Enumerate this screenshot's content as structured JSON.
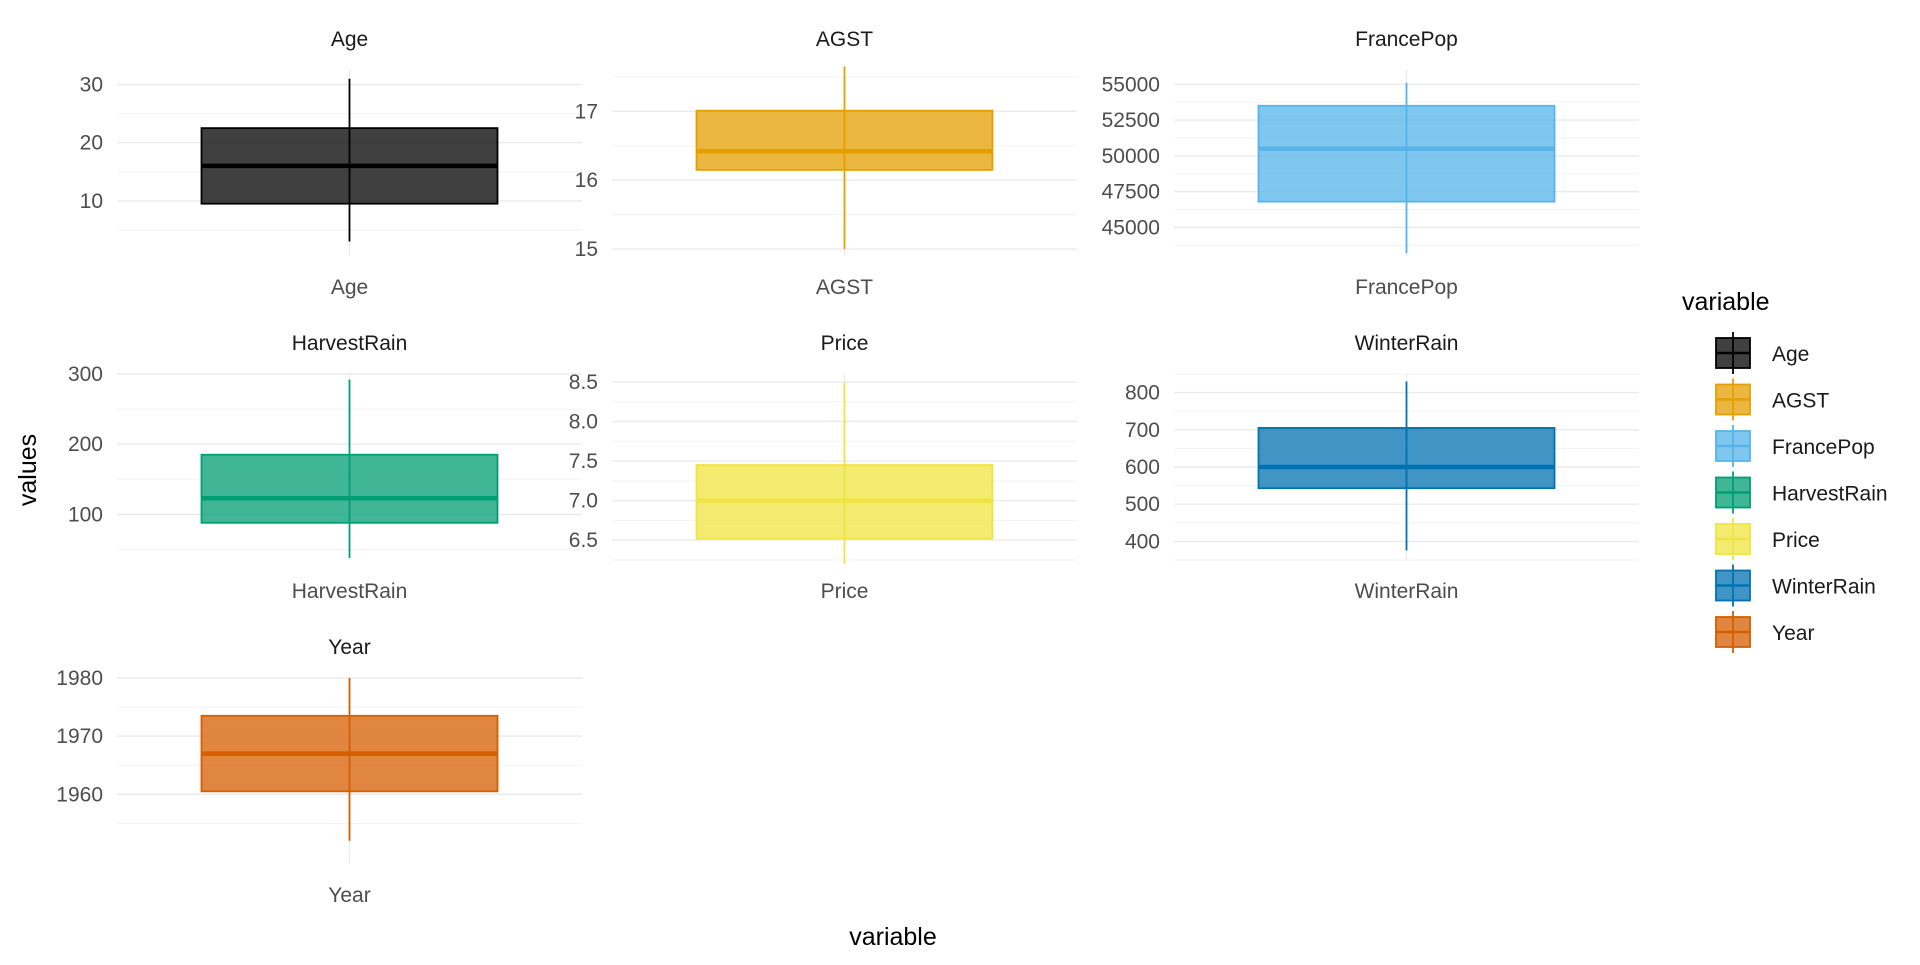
{
  "chart_data": {
    "type": "boxplot",
    "xlabel": "variable",
    "ylabel": "values",
    "legend": {
      "title": "variable",
      "position": "right",
      "entries": [
        "Age",
        "AGST",
        "FrancePop",
        "HarvestRain",
        "Price",
        "WinterRain",
        "Year"
      ]
    },
    "grid": true,
    "facets": [
      {
        "name": "Age",
        "color": "#000000",
        "ylim": [
          0.5,
          32.5
        ],
        "y_ticks": [
          10,
          20,
          30
        ],
        "tick_labels": [
          "10",
          "20",
          "30"
        ],
        "stats": {
          "min": 3,
          "q1": 9.5,
          "median": 16,
          "q3": 22.5,
          "max": 31
        }
      },
      {
        "name": "AGST",
        "color": "#E69F00",
        "ylim": [
          14.9,
          17.6
        ],
        "y_ticks": [
          15,
          16,
          17
        ],
        "tick_labels": [
          "15",
          "16",
          "17"
        ],
        "stats": {
          "min": 15.0,
          "q1": 16.15,
          "median": 16.42,
          "q3": 17.01,
          "max": 17.65
        }
      },
      {
        "name": "FrancePop",
        "color": "#56B4E9",
        "ylim": [
          43000,
          56000
        ],
        "y_ticks": [
          45000,
          47500,
          50000,
          52500,
          55000
        ],
        "tick_labels": [
          "45000",
          "47500",
          "50000",
          "52500",
          "55000"
        ],
        "stats": {
          "min": 43200,
          "q1": 46800,
          "median": 50500,
          "q3": 53500,
          "max": 55100
        }
      },
      {
        "name": "HarvestRain",
        "color": "#009E73",
        "ylim": [
          35,
          300
        ],
        "y_ticks": [
          100,
          200,
          300
        ],
        "tick_labels": [
          "100",
          "200",
          "300"
        ],
        "stats": {
          "min": 38,
          "q1": 88,
          "median": 123,
          "q3": 185,
          "max": 292
        }
      },
      {
        "name": "Price",
        "color": "#F0E442",
        "ylim": [
          6.25,
          8.6
        ],
        "y_ticks": [
          6.5,
          7.0,
          7.5,
          8.0,
          8.5
        ],
        "tick_labels": [
          "6.5",
          "7.0",
          "7.5",
          "8.0",
          "8.5"
        ],
        "stats": {
          "min": 6.2,
          "q1": 6.52,
          "median": 7.0,
          "q3": 7.45,
          "max": 8.49
        }
      },
      {
        "name": "WinterRain",
        "color": "#0072B2",
        "ylim": [
          350,
          850
        ],
        "y_ticks": [
          400,
          500,
          600,
          700,
          800
        ],
        "tick_labels": [
          "400",
          "500",
          "600",
          "700",
          "800"
        ],
        "stats": {
          "min": 376,
          "q1": 543,
          "median": 600,
          "q3": 705,
          "max": 830
        }
      },
      {
        "name": "Year",
        "color": "#D55E00",
        "ylim": [
          1948,
          1980
        ],
        "y_ticks": [
          1960,
          1970,
          1980
        ],
        "tick_labels": [
          "1960",
          "1970",
          "1980"
        ],
        "stats": {
          "min": 1952,
          "q1": 1960.5,
          "median": 1967,
          "q3": 1973.5,
          "max": 1980
        }
      }
    ]
  }
}
